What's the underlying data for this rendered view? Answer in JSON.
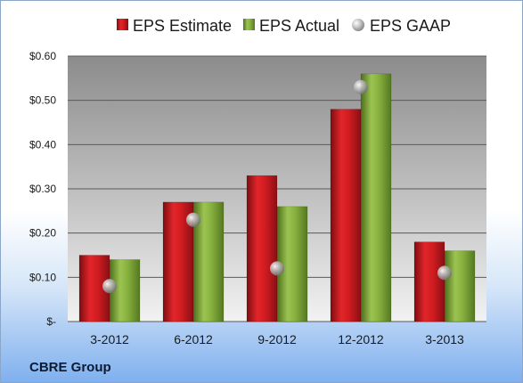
{
  "chart_data": {
    "type": "bar",
    "categories": [
      "3-2012",
      "6-2012",
      "9-2012",
      "12-2012",
      "3-2013"
    ],
    "series": [
      {
        "name": "EPS Estimate",
        "values": [
          0.15,
          0.27,
          0.33,
          0.48,
          0.18
        ],
        "color": "#c0181c"
      },
      {
        "name": "EPS Actual",
        "values": [
          0.14,
          0.27,
          0.26,
          0.56,
          0.16
        ],
        "color": "#77a033"
      },
      {
        "name": "EPS GAAP",
        "values": [
          0.08,
          0.23,
          0.12,
          0.53,
          0.11
        ],
        "color": "#9a9a9a",
        "marker": "sphere"
      }
    ],
    "ylim": [
      0,
      0.6
    ],
    "yticks": [
      {
        "value": 0,
        "label": "$-"
      },
      {
        "value": 0.1,
        "label": "$0.10"
      },
      {
        "value": 0.2,
        "label": "$0.20"
      },
      {
        "value": 0.3,
        "label": "$0.30"
      },
      {
        "value": 0.4,
        "label": "$0.40"
      },
      {
        "value": 0.5,
        "label": "$0.50"
      },
      {
        "value": 0.6,
        "label": "$0.60"
      }
    ],
    "grid": true,
    "legend_position": "top"
  },
  "footer": {
    "company": "CBRE Group"
  }
}
